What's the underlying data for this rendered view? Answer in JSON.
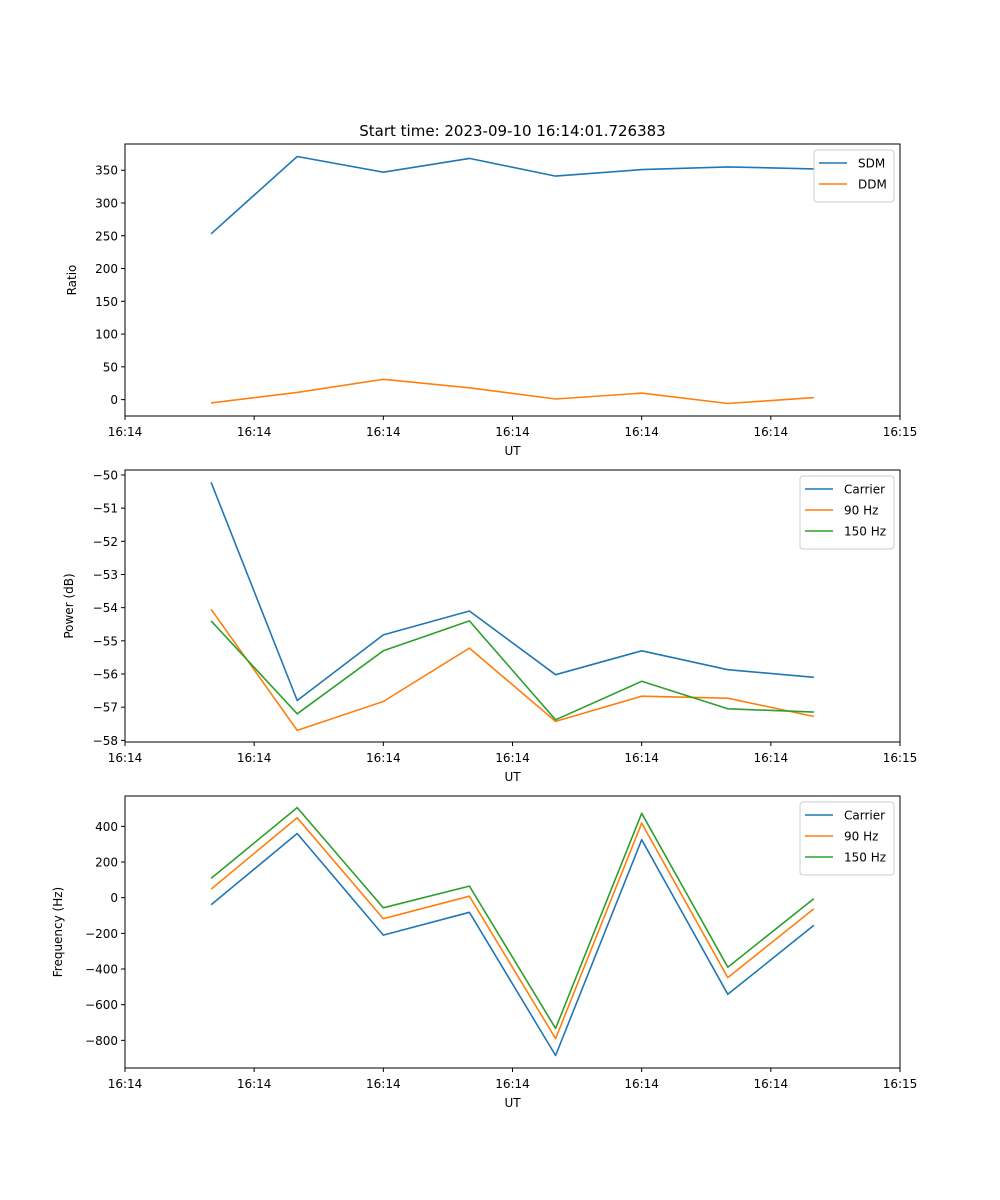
{
  "figure": {
    "title": "Start time: 2023-09-10 16:14:01.726383"
  },
  "colors": {
    "blue": "#1f77b4",
    "orange": "#ff7f0e",
    "green": "#2ca02c"
  },
  "chart_data": [
    {
      "type": "line",
      "xlabel": "UT",
      "ylabel": "Ratio",
      "xlim": [
        0,
        9
      ],
      "ylim": [
        -25,
        390
      ],
      "x": [
        1,
        2,
        3,
        4,
        5,
        6,
        7,
        8
      ],
      "xticks": [
        0,
        1.5,
        3,
        4.5,
        6,
        7.5,
        9
      ],
      "xtick_labels": [
        "16:14",
        "16:14",
        "16:14",
        "16:14",
        "16:14",
        "16:14",
        "16:15"
      ],
      "yticks": [
        0,
        50,
        100,
        150,
        200,
        250,
        300,
        350
      ],
      "ytick_labels": [
        "0",
        "50",
        "100",
        "150",
        "200",
        "250",
        "300",
        "350"
      ],
      "legend_position": "top-right",
      "series": [
        {
          "name": "SDM",
          "color": "#1f77b4",
          "values": [
            253,
            371,
            347,
            368,
            341,
            351,
            355,
            352
          ]
        },
        {
          "name": "DDM",
          "color": "#ff7f0e",
          "values": [
            -5,
            11,
            31,
            18,
            1,
            10,
            -6,
            3
          ]
        }
      ]
    },
    {
      "type": "line",
      "xlabel": "UT",
      "ylabel": "Power (dB)",
      "xlim": [
        0,
        9
      ],
      "ylim": [
        -58.05,
        -49.85
      ],
      "x": [
        1,
        2,
        3,
        4,
        5,
        6,
        7,
        8
      ],
      "xticks": [
        0,
        1.5,
        3,
        4.5,
        6,
        7.5,
        9
      ],
      "xtick_labels": [
        "16:14",
        "16:14",
        "16:14",
        "16:14",
        "16:14",
        "16:14",
        "16:15"
      ],
      "yticks": [
        -58,
        -57,
        -56,
        -55,
        -54,
        -53,
        -52,
        -51,
        -50
      ],
      "ytick_labels": [
        "−58",
        "−57",
        "−56",
        "−55",
        "−54",
        "−53",
        "−52",
        "−51",
        "−50"
      ],
      "legend_position": "top-right",
      "series": [
        {
          "name": "Carrier",
          "color": "#1f77b4",
          "values": [
            -50.22,
            -56.8,
            -54.82,
            -54.1,
            -56.02,
            -55.3,
            -55.87,
            -56.1
          ]
        },
        {
          "name": "90 Hz",
          "color": "#ff7f0e",
          "values": [
            -54.05,
            -57.7,
            -56.83,
            -55.22,
            -57.43,
            -56.67,
            -56.73,
            -57.28
          ]
        },
        {
          "name": "150 Hz",
          "color": "#2ca02c",
          "values": [
            -54.4,
            -57.2,
            -55.3,
            -54.4,
            -57.38,
            -56.22,
            -57.05,
            -57.15
          ]
        }
      ]
    },
    {
      "type": "line",
      "xlabel": "UT",
      "ylabel": "Frequency (Hz)",
      "xlim": [
        0,
        9
      ],
      "ylim": [
        -955,
        570
      ],
      "x": [
        1,
        2,
        3,
        4,
        5,
        6,
        7,
        8
      ],
      "xticks": [
        0,
        1.5,
        3,
        4.5,
        6,
        7.5,
        9
      ],
      "xtick_labels": [
        "16:14",
        "16:14",
        "16:14",
        "16:14",
        "16:14",
        "16:14",
        "16:15"
      ],
      "yticks": [
        -800,
        -600,
        -400,
        -200,
        0,
        200,
        400
      ],
      "ytick_labels": [
        "−800",
        "−600",
        "−400",
        "−200",
        "0",
        "200",
        "400"
      ],
      "legend_position": "top-right",
      "series": [
        {
          "name": "Carrier",
          "color": "#1f77b4",
          "values": [
            -40,
            360,
            -210,
            -82,
            -885,
            325,
            -542,
            -155
          ]
        },
        {
          "name": "90 Hz",
          "color": "#ff7f0e",
          "values": [
            48,
            448,
            -118,
            8,
            -790,
            418,
            -448,
            -62
          ]
        },
        {
          "name": "150 Hz",
          "color": "#2ca02c",
          "values": [
            108,
            505,
            -57,
            65,
            -733,
            473,
            -390,
            -5
          ]
        }
      ]
    }
  ]
}
